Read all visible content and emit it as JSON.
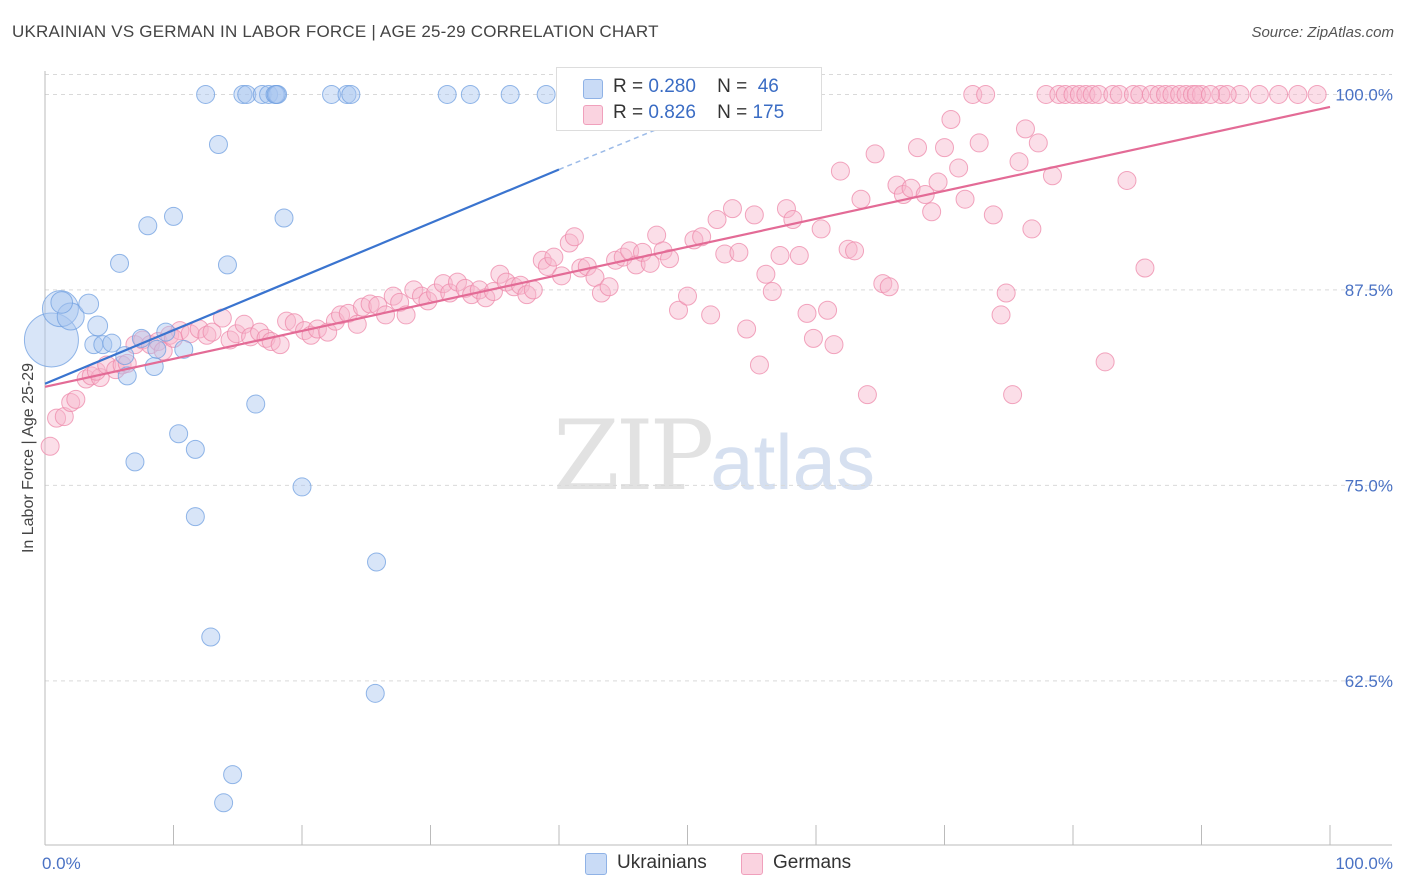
{
  "title": "UKRAINIAN VS GERMAN IN LABOR FORCE | AGE 25-29 CORRELATION CHART",
  "source": "Source: ZipAtlas.com",
  "watermark": {
    "zip": "ZIP",
    "atlas": "atlas"
  },
  "legend": [
    {
      "r_label": "R =",
      "r_value": "0.280",
      "n_label": "N =",
      "n_value": "46",
      "color": "#a9c5f0"
    },
    {
      "r_label": "R =",
      "r_value": "0.826",
      "n_label": "N =",
      "n_value": "175",
      "color": "#f6b6cc"
    }
  ],
  "bottom_legend": [
    {
      "label": "Ukrainians",
      "color": "#a9c5f0"
    },
    {
      "label": "Germans",
      "color": "#f6b6cc"
    }
  ],
  "chart_data": {
    "type": "scatter",
    "title": "UKRAINIAN VS GERMAN IN LABOR FORCE | AGE 25-29 CORRELATION CHART",
    "xlabel": "",
    "ylabel": "In Labor Force | Age 25-29",
    "xlim": [
      0,
      100
    ],
    "ylim": [
      52,
      101.5
    ],
    "x_tick_labels": [
      "0.0%",
      "100.0%"
    ],
    "y_ticks": [
      62.5,
      75.0,
      87.5,
      100.0
    ],
    "y_tick_labels": [
      "62.5%",
      "75.0%",
      "87.5%",
      "100.0%"
    ],
    "grid": true,
    "legend_position": "top-center",
    "series": [
      {
        "name": "Ukrainians",
        "color": "#6f9fe0",
        "fill": "#a9c5f0",
        "trend": {
          "x0": 0,
          "y0": 81.5,
          "x1": 40,
          "y1": 95.2,
          "dash_to_x": 48,
          "dash_to_y": 97.9
        },
        "points": [
          [
            0.5,
            84.3,
            3
          ],
          [
            1.2,
            86.3,
            2
          ],
          [
            2.0,
            85.8,
            1.5
          ],
          [
            1.3,
            86.7,
            1.2
          ],
          [
            3.4,
            86.6,
            1.1
          ],
          [
            4.1,
            85.2,
            1.1
          ],
          [
            3.8,
            84.0,
            1
          ],
          [
            4.5,
            84.0,
            1
          ],
          [
            5.2,
            84.1,
            1
          ],
          [
            5.8,
            89.2,
            1
          ],
          [
            6.2,
            83.3,
            1
          ],
          [
            6.4,
            82.0,
            1
          ],
          [
            7.0,
            76.5,
            1
          ],
          [
            7.5,
            84.4,
            1
          ],
          [
            8.0,
            91.6,
            1
          ],
          [
            8.5,
            82.6,
            1
          ],
          [
            8.7,
            83.7,
            1
          ],
          [
            9.4,
            84.8,
            1
          ],
          [
            10.0,
            92.2,
            1
          ],
          [
            10.4,
            78.3,
            1
          ],
          [
            10.8,
            83.7,
            1
          ],
          [
            11.7,
            77.3,
            1
          ],
          [
            11.7,
            73.0,
            1
          ],
          [
            12.5,
            100.0,
            1
          ],
          [
            12.9,
            65.3,
            1
          ],
          [
            13.5,
            96.8,
            1
          ],
          [
            13.9,
            54.7,
            1
          ],
          [
            14.2,
            89.1,
            1
          ],
          [
            14.6,
            56.5,
            1
          ],
          [
            15.4,
            100.0,
            1
          ],
          [
            15.7,
            100.0,
            1
          ],
          [
            16.4,
            80.2,
            1
          ],
          [
            16.9,
            100.0,
            1
          ],
          [
            17.4,
            100.0,
            1
          ],
          [
            17.9,
            100.0,
            1
          ],
          [
            18.6,
            92.1,
            1
          ],
          [
            18.1,
            100.0,
            1
          ],
          [
            18.0,
            100.0,
            1
          ],
          [
            20.0,
            74.9,
            1
          ],
          [
            22.3,
            100.0,
            1
          ],
          [
            23.5,
            100.0,
            1
          ],
          [
            23.8,
            100.0,
            1
          ],
          [
            25.7,
            61.7,
            1
          ],
          [
            25.8,
            70.1,
            1
          ],
          [
            31.3,
            100.0,
            1
          ],
          [
            33.1,
            100.0,
            1
          ],
          [
            36.2,
            100.0,
            1
          ],
          [
            39.0,
            100.0,
            1
          ]
        ]
      },
      {
        "name": "Germans",
        "color": "#ee88aa",
        "fill": "#f6b6cc",
        "trend": {
          "x0": 0,
          "y0": 81.3,
          "x1": 100,
          "y1": 99.2
        },
        "points": [
          [
            0.4,
            77.5,
            1
          ],
          [
            0.9,
            79.3,
            1
          ],
          [
            1.5,
            79.4,
            1
          ],
          [
            2.0,
            80.3,
            1
          ],
          [
            2.4,
            80.5,
            1
          ],
          [
            3.2,
            81.8,
            1
          ],
          [
            3.6,
            82.0,
            1
          ],
          [
            4.3,
            81.9,
            1
          ],
          [
            4.0,
            82.3,
            1
          ],
          [
            4.8,
            82.7,
            1
          ],
          [
            5.5,
            82.4,
            1
          ],
          [
            6.0,
            82.7,
            1
          ],
          [
            6.4,
            82.8,
            1
          ],
          [
            7.0,
            84.0,
            1
          ],
          [
            7.6,
            84.3,
            1
          ],
          [
            8.2,
            84.0,
            1
          ],
          [
            8.8,
            84.2,
            1
          ],
          [
            9.2,
            83.6,
            1
          ],
          [
            9.7,
            84.6,
            1
          ],
          [
            10.5,
            84.9,
            1
          ],
          [
            10.0,
            84.4,
            1
          ],
          [
            11.3,
            84.7,
            1
          ],
          [
            12.0,
            85.0,
            1
          ],
          [
            12.6,
            84.6,
            1
          ],
          [
            13.0,
            84.8,
            1
          ],
          [
            13.8,
            85.7,
            1
          ],
          [
            14.4,
            84.3,
            1
          ],
          [
            14.9,
            84.7,
            1
          ],
          [
            15.5,
            85.3,
            1
          ],
          [
            16.0,
            84.5,
            1
          ],
          [
            16.7,
            84.8,
            1
          ],
          [
            17.2,
            84.4,
            1
          ],
          [
            17.6,
            84.2,
            1
          ],
          [
            18.3,
            84.0,
            1
          ],
          [
            18.8,
            85.5,
            1
          ],
          [
            19.4,
            85.4,
            1
          ],
          [
            20.2,
            84.9,
            1
          ],
          [
            20.7,
            84.6,
            1
          ],
          [
            21.2,
            85.0,
            1
          ],
          [
            22.0,
            84.8,
            1
          ],
          [
            22.6,
            85.5,
            1
          ],
          [
            23.0,
            85.9,
            1
          ],
          [
            23.6,
            86.0,
            1
          ],
          [
            24.3,
            85.3,
            1
          ],
          [
            24.7,
            86.4,
            1
          ],
          [
            25.3,
            86.6,
            1
          ],
          [
            25.9,
            86.5,
            1
          ],
          [
            26.5,
            85.9,
            1
          ],
          [
            27.1,
            87.1,
            1
          ],
          [
            27.6,
            86.7,
            1
          ],
          [
            28.1,
            85.9,
            1
          ],
          [
            28.7,
            87.5,
            1
          ],
          [
            29.3,
            87.1,
            1
          ],
          [
            29.8,
            86.8,
            1
          ],
          [
            30.4,
            87.3,
            1
          ],
          [
            31.0,
            87.9,
            1
          ],
          [
            31.5,
            87.3,
            1
          ],
          [
            32.1,
            88.0,
            1
          ],
          [
            32.7,
            87.6,
            1
          ],
          [
            33.2,
            87.2,
            1
          ],
          [
            33.8,
            87.5,
            1
          ],
          [
            34.3,
            87.0,
            1
          ],
          [
            34.9,
            87.4,
            1
          ],
          [
            35.4,
            88.5,
            1
          ],
          [
            35.9,
            88.0,
            1
          ],
          [
            36.5,
            87.7,
            1
          ],
          [
            37.0,
            87.8,
            1
          ],
          [
            37.5,
            87.2,
            1
          ],
          [
            38.0,
            87.5,
            1
          ],
          [
            38.7,
            89.4,
            1
          ],
          [
            39.1,
            89.0,
            1
          ],
          [
            39.6,
            89.6,
            1
          ],
          [
            40.2,
            88.4,
            1
          ],
          [
            40.8,
            90.5,
            1
          ],
          [
            41.2,
            90.9,
            1
          ],
          [
            41.7,
            88.9,
            1
          ],
          [
            42.2,
            89.0,
            1
          ],
          [
            42.8,
            88.3,
            1
          ],
          [
            43.3,
            87.3,
            1
          ],
          [
            43.9,
            87.7,
            1
          ],
          [
            44.4,
            89.4,
            1
          ],
          [
            45.0,
            89.6,
            1
          ],
          [
            45.5,
            90.0,
            1
          ],
          [
            46.0,
            89.1,
            1
          ],
          [
            46.5,
            89.9,
            1
          ],
          [
            47.1,
            89.2,
            1
          ],
          [
            47.6,
            91.0,
            1
          ],
          [
            48.1,
            90.0,
            1
          ],
          [
            48.6,
            89.5,
            1
          ],
          [
            49.3,
            86.2,
            1
          ],
          [
            50.0,
            87.1,
            1
          ],
          [
            50.5,
            90.7,
            1
          ],
          [
            51.1,
            90.9,
            1
          ],
          [
            51.8,
            85.9,
            1
          ],
          [
            52.3,
            92.0,
            1
          ],
          [
            52.9,
            89.8,
            1
          ],
          [
            53.5,
            92.7,
            1
          ],
          [
            54.0,
            89.9,
            1
          ],
          [
            54.6,
            85.0,
            1
          ],
          [
            55.2,
            92.3,
            1
          ],
          [
            55.6,
            82.7,
            1
          ],
          [
            56.1,
            88.5,
            1
          ],
          [
            56.6,
            87.4,
            1
          ],
          [
            57.2,
            89.7,
            1
          ],
          [
            57.7,
            92.7,
            1
          ],
          [
            58.2,
            92.0,
            1
          ],
          [
            58.7,
            89.7,
            1
          ],
          [
            59.3,
            86.0,
            1
          ],
          [
            59.8,
            84.4,
            1
          ],
          [
            60.4,
            91.4,
            1
          ],
          [
            60.9,
            86.2,
            1
          ],
          [
            61.4,
            84.0,
            1
          ],
          [
            61.9,
            95.1,
            1
          ],
          [
            62.5,
            90.1,
            1
          ],
          [
            63.0,
            90.0,
            1
          ],
          [
            63.5,
            93.3,
            1
          ],
          [
            64.0,
            80.8,
            1
          ],
          [
            64.6,
            96.2,
            1
          ],
          [
            65.2,
            87.9,
            1
          ],
          [
            65.7,
            87.7,
            1
          ],
          [
            66.3,
            94.2,
            1
          ],
          [
            66.8,
            93.6,
            1
          ],
          [
            67.4,
            94.0,
            1
          ],
          [
            67.9,
            96.6,
            1
          ],
          [
            68.5,
            93.6,
            1
          ],
          [
            69.0,
            92.5,
            1
          ],
          [
            69.5,
            94.4,
            1
          ],
          [
            70.0,
            96.6,
            1
          ],
          [
            70.5,
            98.4,
            1
          ],
          [
            71.1,
            95.3,
            1
          ],
          [
            71.6,
            93.3,
            1
          ],
          [
            72.2,
            100.0,
            1
          ],
          [
            72.7,
            96.9,
            1
          ],
          [
            73.2,
            100.0,
            1
          ],
          [
            73.8,
            92.3,
            1
          ],
          [
            74.4,
            85.9,
            1
          ],
          [
            74.8,
            87.3,
            1
          ],
          [
            75.3,
            80.8,
            1
          ],
          [
            75.8,
            95.7,
            1
          ],
          [
            76.3,
            97.8,
            1
          ],
          [
            76.8,
            91.4,
            1
          ],
          [
            77.3,
            96.9,
            1
          ],
          [
            77.9,
            100.0,
            1
          ],
          [
            78.4,
            94.8,
            1
          ],
          [
            78.9,
            100.0,
            1
          ],
          [
            79.4,
            100.0,
            1
          ],
          [
            80.0,
            100.0,
            1
          ],
          [
            80.5,
            100.0,
            1
          ],
          [
            81.0,
            100.0,
            1
          ],
          [
            81.5,
            100.0,
            1
          ],
          [
            82.0,
            100.0,
            1
          ],
          [
            82.5,
            82.9,
            1
          ],
          [
            83.1,
            100.0,
            1
          ],
          [
            83.6,
            100.0,
            1
          ],
          [
            84.2,
            94.5,
            1
          ],
          [
            84.7,
            100.0,
            1
          ],
          [
            85.2,
            100.0,
            1
          ],
          [
            85.6,
            88.9,
            1
          ],
          [
            86.1,
            100.0,
            1
          ],
          [
            86.7,
            100.0,
            1
          ],
          [
            87.2,
            100.0,
            1
          ],
          [
            87.7,
            100.0,
            1
          ],
          [
            88.3,
            100.0,
            1
          ],
          [
            88.8,
            100.0,
            1
          ],
          [
            89.3,
            100.0,
            1
          ],
          [
            90.0,
            100.0,
            1
          ],
          [
            91.5,
            100.0,
            1
          ],
          [
            93.0,
            100.0,
            1
          ],
          [
            94.5,
            100.0,
            1
          ],
          [
            96.0,
            100.0,
            1
          ],
          [
            97.5,
            100.0,
            1
          ],
          [
            99.0,
            100.0,
            1
          ],
          [
            92.0,
            100.0,
            1
          ],
          [
            89.6,
            100.0,
            1
          ],
          [
            90.7,
            100.0,
            1
          ]
        ]
      }
    ]
  }
}
